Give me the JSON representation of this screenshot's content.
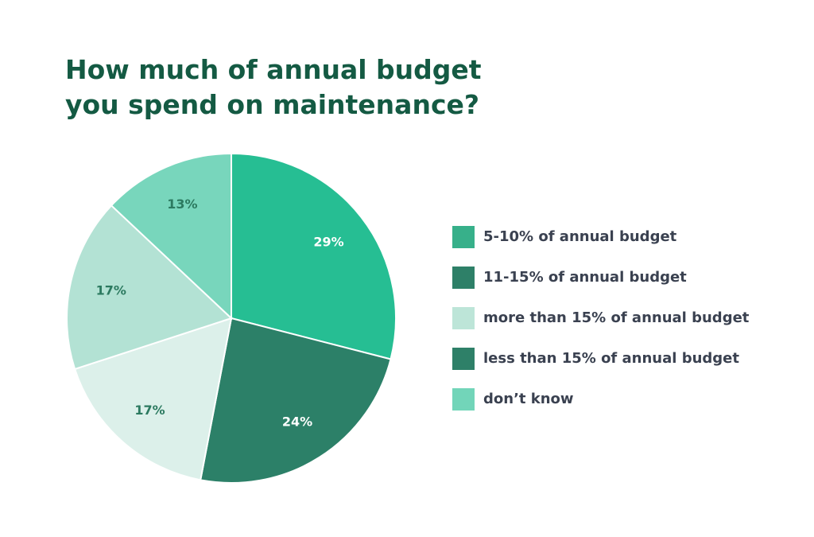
{
  "chart_data": {
    "type": "pie",
    "title": "How much of annual budget you spend on maintenance?",
    "values": [
      29,
      24,
      17,
      17,
      13
    ],
    "value_labels": [
      "29%",
      "24%",
      "17%",
      "17%",
      "13%"
    ],
    "colors": [
      "#26be93",
      "#2c8068",
      "#dcf0ea",
      "#b3e2d4",
      "#78d6bc"
    ],
    "legend": [
      {
        "label": "5-10% of annual budget",
        "color": "#37b08a"
      },
      {
        "label": "11-15% of annual budget",
        "color": "#2e8068"
      },
      {
        "label": "more than 15% of annual budget",
        "color": "#bde5d8"
      },
      {
        "label": "less than 15% of annual budget",
        "color": "#2e8068"
      },
      {
        "label": "don’t know",
        "color": "#72d5b9"
      }
    ]
  }
}
